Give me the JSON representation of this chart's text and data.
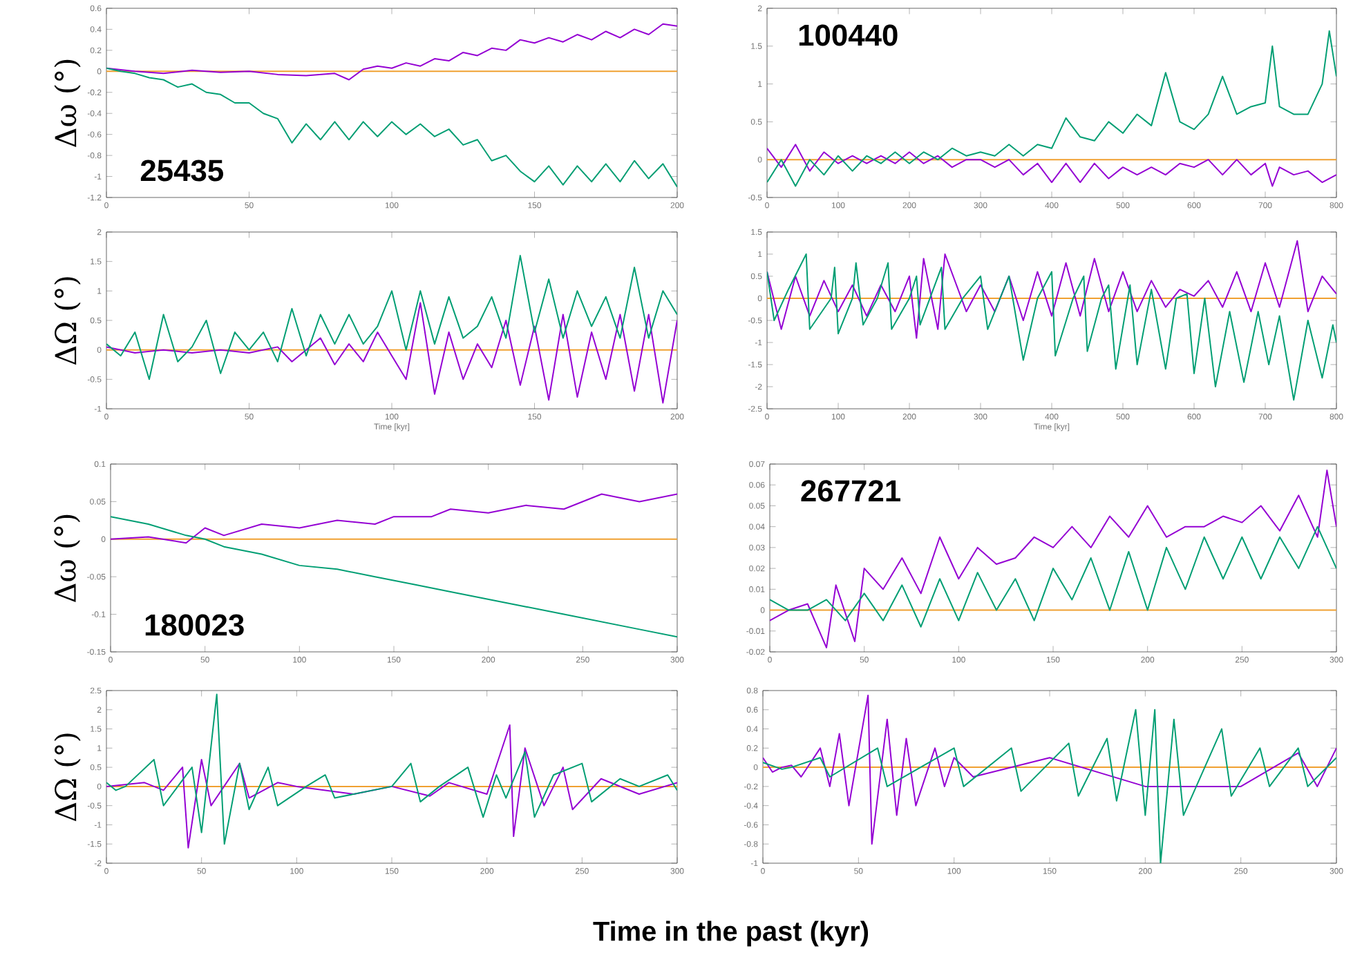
{
  "chart_data": [
    {
      "type": "line",
      "ylabel": "Δω (°)",
      "annotations": [
        "25435"
      ],
      "xlim": [
        0,
        200
      ],
      "ylim": [
        -1.2,
        0.6
      ],
      "xticks": [
        0,
        50,
        100,
        150,
        200
      ],
      "yticks": [
        -1.2,
        -1,
        -0.8,
        -0.6,
        -0.4,
        -0.2,
        0,
        0.2,
        0.4,
        0.6
      ],
      "ref_lines": [
        {
          "axis": "y",
          "value": 0,
          "color": "#f0a030"
        }
      ],
      "series": [
        {
          "color": "#9400d3",
          "x": [
            0,
            10,
            20,
            30,
            40,
            50,
            60,
            70,
            80,
            85,
            90,
            95,
            100,
            105,
            110,
            115,
            120,
            125,
            130,
            135,
            140,
            145,
            150,
            155,
            160,
            165,
            170,
            175,
            180,
            185,
            190,
            195,
            200
          ],
          "values": [
            0.03,
            0.0,
            -0.02,
            0.01,
            -0.01,
            0.0,
            -0.03,
            -0.04,
            -0.02,
            -0.08,
            0.02,
            0.05,
            0.03,
            0.08,
            0.05,
            0.12,
            0.1,
            0.18,
            0.15,
            0.22,
            0.2,
            0.3,
            0.27,
            0.32,
            0.28,
            0.35,
            0.3,
            0.38,
            0.32,
            0.4,
            0.35,
            0.45,
            0.43
          ]
        },
        {
          "color": "#009e73",
          "x": [
            0,
            5,
            10,
            15,
            20,
            25,
            30,
            35,
            40,
            45,
            50,
            55,
            60,
            65,
            70,
            75,
            80,
            85,
            90,
            95,
            100,
            105,
            110,
            115,
            120,
            125,
            130,
            135,
            140,
            145,
            150,
            155,
            160,
            165,
            170,
            175,
            180,
            185,
            190,
            195,
            200
          ],
          "values": [
            0.03,
            0.0,
            -0.02,
            -0.06,
            -0.08,
            -0.15,
            -0.12,
            -0.2,
            -0.22,
            -0.3,
            -0.3,
            -0.4,
            -0.45,
            -0.68,
            -0.5,
            -0.65,
            -0.48,
            -0.65,
            -0.48,
            -0.62,
            -0.48,
            -0.6,
            -0.5,
            -0.62,
            -0.55,
            -0.7,
            -0.65,
            -0.85,
            -0.8,
            -0.95,
            -1.05,
            -0.9,
            -1.08,
            -0.9,
            -1.05,
            -0.88,
            -1.05,
            -0.85,
            -1.02,
            -0.88,
            -1.1
          ]
        }
      ]
    },
    {
      "type": "line",
      "annotations": [
        "100440"
      ],
      "xlim": [
        0,
        800
      ],
      "ylim": [
        -0.5,
        2
      ],
      "xticks": [
        0,
        100,
        200,
        300,
        400,
        500,
        600,
        700,
        800
      ],
      "yticks": [
        -0.5,
        0,
        0.5,
        1,
        1.5,
        2
      ],
      "ref_lines": [
        {
          "axis": "y",
          "value": 0,
          "color": "#f0a030"
        }
      ],
      "series": [
        {
          "color": "#9400d3",
          "x": [
            0,
            20,
            40,
            60,
            80,
            100,
            120,
            140,
            160,
            180,
            200,
            220,
            240,
            260,
            280,
            300,
            320,
            340,
            360,
            380,
            400,
            420,
            440,
            460,
            480,
            500,
            520,
            540,
            560,
            580,
            600,
            620,
            640,
            660,
            680,
            700,
            710,
            720,
            740,
            760,
            780,
            800
          ],
          "values": [
            0.15,
            -0.1,
            0.2,
            -0.15,
            0.1,
            -0.05,
            0.05,
            -0.05,
            0.05,
            -0.05,
            0.1,
            -0.05,
            0.05,
            -0.1,
            0.0,
            0.0,
            -0.1,
            0.0,
            -0.2,
            -0.05,
            -0.3,
            -0.05,
            -0.3,
            -0.05,
            -0.25,
            -0.1,
            -0.2,
            -0.1,
            -0.2,
            -0.05,
            -0.1,
            0.0,
            -0.2,
            0.0,
            -0.2,
            -0.05,
            -0.35,
            -0.1,
            -0.2,
            -0.15,
            -0.3,
            -0.2
          ]
        },
        {
          "color": "#009e73",
          "x": [
            0,
            20,
            40,
            60,
            80,
            100,
            120,
            140,
            160,
            180,
            200,
            220,
            240,
            260,
            280,
            300,
            320,
            340,
            360,
            380,
            400,
            420,
            440,
            460,
            480,
            500,
            520,
            540,
            560,
            580,
            600,
            620,
            640,
            660,
            680,
            700,
            710,
            720,
            740,
            760,
            780,
            790,
            800
          ],
          "values": [
            -0.3,
            0.0,
            -0.35,
            0.0,
            -0.2,
            0.05,
            -0.15,
            0.05,
            -0.05,
            0.1,
            -0.05,
            0.1,
            0.0,
            0.15,
            0.05,
            0.1,
            0.05,
            0.2,
            0.05,
            0.2,
            0.15,
            0.55,
            0.3,
            0.25,
            0.5,
            0.35,
            0.6,
            0.45,
            1.15,
            0.5,
            0.4,
            0.6,
            1.1,
            0.6,
            0.7,
            0.75,
            1.5,
            0.7,
            0.6,
            0.6,
            1.0,
            1.7,
            1.1
          ]
        }
      ]
    },
    {
      "type": "line",
      "ylabel": "ΔΩ (°)",
      "xlabel": "Time [kyr]",
      "xlim": [
        0,
        200
      ],
      "ylim": [
        -1,
        2
      ],
      "xticks": [
        0,
        50,
        100,
        150,
        200
      ],
      "yticks": [
        -1,
        -0.5,
        0,
        0.5,
        1,
        1.5,
        2
      ],
      "ref_lines": [
        {
          "axis": "y",
          "value": 0,
          "color": "#f0a030"
        }
      ],
      "series": [
        {
          "color": "#9400d3",
          "x": [
            0,
            10,
            20,
            30,
            40,
            50,
            60,
            65,
            70,
            75,
            80,
            85,
            90,
            95,
            100,
            105,
            110,
            115,
            120,
            125,
            130,
            135,
            140,
            145,
            150,
            155,
            160,
            165,
            170,
            175,
            180,
            185,
            190,
            195,
            200
          ],
          "values": [
            0.05,
            -0.05,
            0.0,
            -0.05,
            0.0,
            -0.05,
            0.05,
            -0.2,
            0.0,
            0.2,
            -0.25,
            0.1,
            -0.2,
            0.3,
            -0.1,
            -0.5,
            0.8,
            -0.75,
            0.3,
            -0.5,
            0.1,
            -0.3,
            0.5,
            -0.6,
            0.4,
            -0.85,
            0.6,
            -0.8,
            0.3,
            -0.5,
            0.6,
            -0.7,
            0.6,
            -0.9,
            0.5
          ]
        },
        {
          "color": "#009e73",
          "x": [
            0,
            5,
            10,
            15,
            20,
            25,
            30,
            35,
            40,
            45,
            50,
            55,
            60,
            65,
            70,
            75,
            80,
            85,
            90,
            95,
            100,
            105,
            110,
            115,
            120,
            125,
            130,
            135,
            140,
            145,
            150,
            155,
            160,
            165,
            170,
            175,
            180,
            185,
            190,
            195,
            200
          ],
          "values": [
            0.1,
            -0.1,
            0.3,
            -0.5,
            0.6,
            -0.2,
            0.05,
            0.5,
            -0.4,
            0.3,
            0.0,
            0.3,
            -0.2,
            0.7,
            -0.1,
            0.6,
            0.1,
            0.6,
            0.1,
            0.4,
            1.0,
            0.0,
            1.0,
            0.1,
            0.9,
            0.2,
            0.4,
            0.9,
            0.2,
            1.6,
            0.3,
            1.2,
            0.2,
            1.0,
            0.4,
            0.9,
            0.2,
            1.4,
            0.2,
            1.0,
            0.6
          ]
        }
      ]
    },
    {
      "type": "line",
      "xlabel": "Time [kyr]",
      "xlim": [
        0,
        800
      ],
      "ylim": [
        -2.5,
        1.5
      ],
      "xticks": [
        0,
        100,
        200,
        300,
        400,
        500,
        600,
        700,
        800
      ],
      "yticks": [
        -2.5,
        -2,
        -1.5,
        -1,
        -0.5,
        0,
        0.5,
        1,
        1.5
      ],
      "ref_lines": [
        {
          "axis": "y",
          "value": 0,
          "color": "#f0a030"
        }
      ],
      "series": [
        {
          "color": "#9400d3",
          "x": [
            0,
            20,
            40,
            60,
            80,
            100,
            120,
            140,
            160,
            180,
            200,
            210,
            220,
            240,
            250,
            280,
            300,
            320,
            340,
            360,
            380,
            400,
            420,
            440,
            460,
            480,
            500,
            520,
            540,
            560,
            580,
            600,
            620,
            640,
            660,
            680,
            700,
            720,
            745,
            760,
            780,
            800
          ],
          "values": [
            0.6,
            -0.7,
            0.5,
            -0.4,
            0.4,
            -0.3,
            0.3,
            -0.4,
            0.3,
            -0.3,
            0.5,
            -0.9,
            0.9,
            -0.7,
            1.0,
            -0.3,
            0.3,
            -0.3,
            0.5,
            -0.5,
            0.6,
            -0.4,
            0.8,
            -0.4,
            0.9,
            -0.3,
            0.6,
            -0.3,
            0.4,
            -0.2,
            0.2,
            0.05,
            0.4,
            -0.2,
            0.6,
            -0.3,
            0.8,
            -0.2,
            1.3,
            -0.3,
            0.5,
            0.1
          ]
        },
        {
          "color": "#009e73",
          "x": [
            0,
            10,
            30,
            55,
            60,
            90,
            95,
            100,
            120,
            125,
            135,
            155,
            170,
            175,
            200,
            210,
            215,
            245,
            250,
            275,
            300,
            310,
            340,
            360,
            380,
            400,
            405,
            430,
            445,
            450,
            470,
            480,
            490,
            510,
            520,
            540,
            560,
            575,
            590,
            600,
            615,
            630,
            650,
            670,
            690,
            705,
            720,
            740,
            760,
            780,
            795,
            800
          ],
          "values": [
            0.6,
            -0.5,
            0.2,
            1.0,
            -0.7,
            0.0,
            0.7,
            -0.8,
            0.0,
            0.8,
            -0.6,
            0.0,
            0.8,
            -0.7,
            0.0,
            0.5,
            -0.6,
            0.7,
            -0.7,
            0.0,
            0.5,
            -0.7,
            0.5,
            -1.4,
            0.0,
            0.6,
            -1.3,
            0.0,
            0.5,
            -1.2,
            0.0,
            0.3,
            -1.6,
            0.3,
            -1.5,
            0.2,
            -1.6,
            0.0,
            0.1,
            -1.7,
            0.0,
            -2.0,
            -0.3,
            -1.9,
            -0.3,
            -1.5,
            -0.4,
            -2.3,
            -0.5,
            -1.8,
            -0.6,
            -1.0
          ]
        }
      ]
    },
    {
      "type": "line",
      "ylabel": "Δω (°)",
      "annotations": [
        "180023"
      ],
      "xlim": [
        0,
        300
      ],
      "ylim": [
        -0.15,
        0.1
      ],
      "xticks": [
        0,
        50,
        100,
        150,
        200,
        250,
        300
      ],
      "yticks": [
        -0.15,
        -0.1,
        -0.05,
        0,
        0.05,
        0.1
      ],
      "ref_lines": [
        {
          "axis": "y",
          "value": 0,
          "color": "#f0a030"
        }
      ],
      "series": [
        {
          "color": "#9400d3",
          "x": [
            0,
            20,
            40,
            50,
            60,
            80,
            100,
            120,
            140,
            150,
            170,
            180,
            200,
            220,
            240,
            260,
            280,
            300
          ],
          "values": [
            0.0,
            0.003,
            -0.005,
            0.015,
            0.005,
            0.02,
            0.015,
            0.025,
            0.02,
            0.03,
            0.03,
            0.04,
            0.035,
            0.045,
            0.04,
            0.06,
            0.05,
            0.06
          ]
        },
        {
          "color": "#009e73",
          "x": [
            0,
            20,
            40,
            50,
            60,
            80,
            100,
            120,
            140,
            160,
            180,
            200,
            220,
            240,
            260,
            280,
            300
          ],
          "values": [
            0.03,
            0.02,
            0.005,
            0.0,
            -0.01,
            -0.02,
            -0.035,
            -0.04,
            -0.05,
            -0.06,
            -0.07,
            -0.08,
            -0.09,
            -0.1,
            -0.11,
            -0.12,
            -0.13
          ]
        }
      ]
    },
    {
      "type": "line",
      "annotations": [
        "267721",
        "Time in the past (kyr)"
      ],
      "xlim": [
        0,
        300
      ],
      "ylim": [
        -0.02,
        0.07
      ],
      "xticks": [
        0,
        50,
        100,
        150,
        200,
        250,
        300
      ],
      "yticks": [
        -0.02,
        -0.01,
        0,
        0.01,
        0.02,
        0.03,
        0.04,
        0.05,
        0.06,
        0.07
      ],
      "ref_lines": [
        {
          "axis": "y",
          "value": 0,
          "color": "#f0a030"
        }
      ],
      "series": [
        {
          "color": "#9400d3",
          "x": [
            0,
            10,
            20,
            30,
            35,
            45,
            50,
            60,
            70,
            80,
            90,
            100,
            110,
            120,
            130,
            140,
            150,
            160,
            170,
            180,
            190,
            200,
            210,
            220,
            230,
            240,
            250,
            260,
            270,
            280,
            290,
            295,
            300
          ],
          "values": [
            -0.005,
            0.0,
            0.003,
            -0.018,
            0.012,
            -0.015,
            0.02,
            0.01,
            0.025,
            0.008,
            0.035,
            0.015,
            0.03,
            0.022,
            0.025,
            0.035,
            0.03,
            0.04,
            0.03,
            0.045,
            0.035,
            0.05,
            0.035,
            0.04,
            0.04,
            0.045,
            0.042,
            0.05,
            0.038,
            0.055,
            0.035,
            0.067,
            0.04
          ]
        },
        {
          "color": "#009e73",
          "x": [
            0,
            10,
            20,
            30,
            40,
            50,
            60,
            70,
            80,
            90,
            100,
            110,
            120,
            130,
            140,
            150,
            160,
            170,
            180,
            190,
            200,
            210,
            220,
            230,
            240,
            250,
            260,
            270,
            280,
            290,
            300
          ],
          "values": [
            0.005,
            0.0,
            0.0,
            0.005,
            -0.005,
            0.008,
            -0.005,
            0.012,
            -0.008,
            0.015,
            -0.005,
            0.018,
            0.0,
            0.015,
            -0.005,
            0.02,
            0.005,
            0.025,
            0.0,
            0.028,
            0.0,
            0.03,
            0.01,
            0.035,
            0.015,
            0.035,
            0.015,
            0.035,
            0.02,
            0.04,
            0.02
          ]
        }
      ]
    },
    {
      "type": "line",
      "ylabel": "ΔΩ (°)",
      "xlim": [
        0,
        300
      ],
      "ylim": [
        -2,
        2.5
      ],
      "xticks": [
        0,
        50,
        100,
        150,
        200,
        250,
        300
      ],
      "yticks": [
        -2,
        -1.5,
        -1,
        -0.5,
        0,
        0.5,
        1,
        1.5,
        2,
        2.5
      ],
      "ref_lines": [
        {
          "axis": "y",
          "value": 0,
          "color": "#f0a030"
        }
      ],
      "series": [
        {
          "color": "#9400d3",
          "x": [
            0,
            20,
            30,
            40,
            43,
            50,
            55,
            70,
            75,
            90,
            100,
            130,
            150,
            170,
            180,
            200,
            212,
            214,
            220,
            230,
            240,
            245,
            260,
            280,
            300
          ],
          "values": [
            0.0,
            0.1,
            -0.1,
            0.5,
            -1.6,
            0.7,
            -0.5,
            0.6,
            -0.3,
            0.1,
            0.0,
            -0.2,
            0.0,
            -0.25,
            0.1,
            -0.2,
            1.6,
            -1.3,
            1.0,
            -0.5,
            0.5,
            -0.6,
            0.2,
            -0.2,
            0.1
          ]
        },
        {
          "color": "#009e73",
          "x": [
            0,
            5,
            10,
            25,
            30,
            45,
            50,
            58,
            62,
            70,
            75,
            85,
            90,
            105,
            115,
            120,
            150,
            160,
            165,
            175,
            190,
            198,
            205,
            210,
            220,
            225,
            235,
            250,
            255,
            270,
            280,
            295,
            300
          ],
          "values": [
            0.1,
            -0.1,
            0.0,
            0.7,
            -0.5,
            0.5,
            -1.2,
            2.4,
            -1.5,
            0.6,
            -0.6,
            0.5,
            -0.5,
            0.0,
            0.3,
            -0.3,
            0.0,
            0.6,
            -0.4,
            0.0,
            0.5,
            -0.8,
            0.3,
            -0.3,
            0.9,
            -0.8,
            0.3,
            0.6,
            -0.4,
            0.2,
            0.0,
            0.3,
            -0.1
          ]
        }
      ]
    },
    {
      "type": "line",
      "xlim": [
        0,
        300
      ],
      "ylim": [
        -1,
        0.8
      ],
      "xticks": [
        0,
        50,
        100,
        150,
        200,
        250,
        300
      ],
      "yticks": [
        -1,
        -0.8,
        -0.6,
        -0.4,
        -0.2,
        0,
        0.2,
        0.4,
        0.6,
        0.8
      ],
      "ref_lines": [
        {
          "axis": "y",
          "value": 0,
          "color": "#f0a030"
        }
      ],
      "series": [
        {
          "color": "#9400d3",
          "x": [
            0,
            5,
            10,
            15,
            20,
            30,
            35,
            40,
            45,
            55,
            57,
            65,
            70,
            75,
            80,
            90,
            95,
            100,
            110,
            150,
            200,
            250,
            280,
            290,
            300
          ],
          "values": [
            0.1,
            -0.05,
            0.0,
            0.02,
            -0.1,
            0.2,
            -0.2,
            0.35,
            -0.4,
            0.75,
            -0.8,
            0.5,
            -0.5,
            0.3,
            -0.4,
            0.2,
            -0.2,
            0.1,
            -0.1,
            0.1,
            -0.2,
            -0.2,
            0.15,
            -0.2,
            0.2
          ]
        },
        {
          "color": "#009e73",
          "x": [
            0,
            10,
            15,
            30,
            35,
            60,
            65,
            100,
            105,
            130,
            135,
            160,
            165,
            180,
            185,
            195,
            200,
            205,
            208,
            215,
            220,
            240,
            245,
            260,
            265,
            280,
            285,
            300
          ],
          "values": [
            0.05,
            -0.02,
            0.0,
            0.1,
            -0.1,
            0.2,
            -0.2,
            0.2,
            -0.2,
            0.2,
            -0.25,
            0.25,
            -0.3,
            0.3,
            -0.35,
            0.6,
            -0.5,
            0.6,
            -1.0,
            0.5,
            -0.5,
            0.4,
            -0.3,
            0.2,
            -0.2,
            0.2,
            -0.2,
            0.1
          ]
        }
      ]
    }
  ]
}
